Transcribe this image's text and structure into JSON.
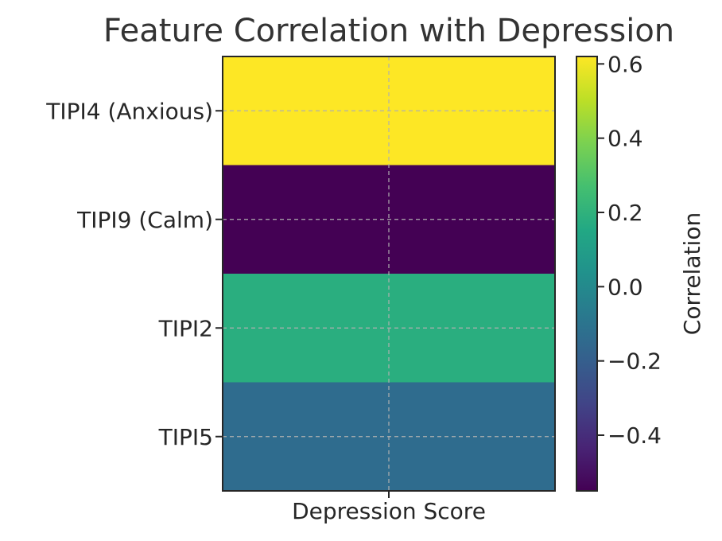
{
  "chart_data": {
    "type": "heatmap",
    "title": "Feature Correlation with Depression",
    "xlabel": "Depression Score",
    "ylabel": "",
    "x_categories": [
      "Depression Score"
    ],
    "y_categories": [
      "TIPI4 (Anxious)",
      "TIPI9 (Calm)",
      "TIPI2",
      "TIPI5"
    ],
    "values": [
      [
        0.62
      ],
      [
        -0.55
      ],
      [
        0.18
      ],
      [
        -0.14
      ]
    ],
    "colormap": "viridis",
    "colorbar": {
      "label": "Correlation",
      "vmin": -0.55,
      "vmax": 0.62,
      "ticks": [
        -0.4,
        -0.2,
        0.0,
        0.2,
        0.4,
        0.6
      ],
      "tick_labels": [
        "−0.4",
        "−0.2",
        "0.0",
        "0.2",
        "0.4",
        "0.6"
      ]
    },
    "grid": true,
    "grid_style": "dashed"
  }
}
